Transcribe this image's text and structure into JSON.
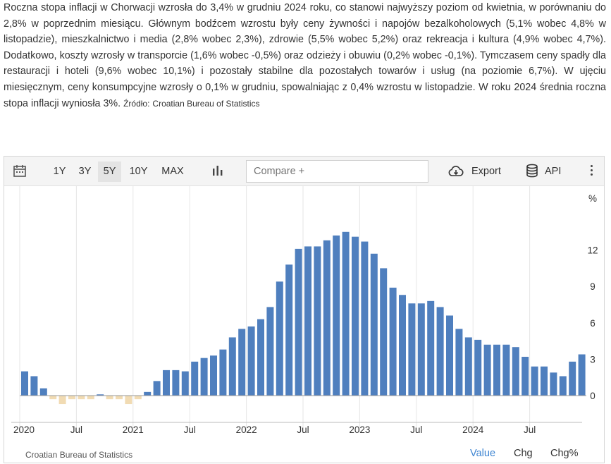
{
  "description": {
    "text": "Roczna stopa inflacji w Chorwacji wzrosła do 3,4% w grudniu 2024 roku, co stanowi najwyższy poziom od kwietnia, w porównaniu do 2,8% w poprzednim miesiącu. Głównym bodźcem wzrostu były ceny żywności i napojów bezalkoholowych (5,1% wobec 4,8% w listopadzie), mieszkalnictwo i media (2,8% wobec 2,3%), zdrowie (5,5% wobec 5,2%) oraz rekreacja i kultura (4,9% wobec 4,7%). Dodatkowo, koszty wzrosły w transporcie (1,6% wobec -0,5%) oraz odzieży i obuwiu (0,2% wobec -0,1%). Tymczasem ceny spadły dla restauracji i hoteli (9,6% wobec 10,1%) i pozostały stabilne dla pozostałych towarów i usług (na poziomie 6,7%). W ujęciu miesięcznym, ceny konsumpcyjne wzrosły o 0,1% w grudniu, spowalniając z 0,4% wzrostu w listopadzie. W roku 2024 średnia roczna stopa inflacji wyniosła 3%.",
    "source_label": "Źródło:",
    "source_name": "Croatian Bureau of Statistics"
  },
  "toolbar": {
    "ranges": [
      "1Y",
      "3Y",
      "5Y",
      "10Y",
      "MAX"
    ],
    "active_range": "5Y",
    "compare_placeholder": "Compare +",
    "export_label": "Export",
    "api_label": "API"
  },
  "footer": {
    "source": "Croatian Bureau of Statistics",
    "tabs": [
      "Value",
      "Chg",
      "Chg%"
    ],
    "active_tab": "Value"
  },
  "colors": {
    "positive": "#4f7fbe",
    "negative": "#f1dbb3",
    "active_tab": "#3d84d1"
  },
  "chart_data": {
    "type": "bar",
    "unit_label": "%",
    "x_tick_labels": [
      "2020",
      "Jul",
      "2021",
      "Jul",
      "2022",
      "Jul",
      "2023",
      "Jul",
      "2024",
      "Jul"
    ],
    "y_ticks": [
      0,
      3,
      6,
      9,
      12
    ],
    "ylim": [
      -1.0,
      15.0
    ],
    "grid": "vertical",
    "categories": [
      "2020-01",
      "2020-02",
      "2020-03",
      "2020-04",
      "2020-05",
      "2020-06",
      "2020-07",
      "2020-08",
      "2020-09",
      "2020-10",
      "2020-11",
      "2020-12",
      "2021-01",
      "2021-02",
      "2021-03",
      "2021-04",
      "2021-05",
      "2021-06",
      "2021-07",
      "2021-08",
      "2021-09",
      "2021-10",
      "2021-11",
      "2021-12",
      "2022-01",
      "2022-02",
      "2022-03",
      "2022-04",
      "2022-05",
      "2022-06",
      "2022-07",
      "2022-08",
      "2022-09",
      "2022-10",
      "2022-11",
      "2022-12",
      "2023-01",
      "2023-02",
      "2023-03",
      "2023-04",
      "2023-05",
      "2023-06",
      "2023-07",
      "2023-08",
      "2023-09",
      "2023-10",
      "2023-11",
      "2023-12",
      "2024-01",
      "2024-02",
      "2024-03",
      "2024-04",
      "2024-05",
      "2024-06",
      "2024-07",
      "2024-08",
      "2024-09",
      "2024-10",
      "2024-11",
      "2024-12"
    ],
    "values": [
      2.0,
      1.6,
      0.6,
      -0.3,
      -0.7,
      -0.3,
      -0.3,
      -0.3,
      0.1,
      -0.3,
      -0.3,
      -0.7,
      -0.3,
      0.3,
      1.2,
      2.1,
      2.1,
      2.0,
      2.8,
      3.1,
      3.3,
      3.8,
      4.8,
      5.5,
      5.7,
      6.3,
      7.3,
      9.4,
      10.8,
      12.1,
      12.3,
      12.3,
      12.8,
      13.2,
      13.5,
      13.1,
      12.7,
      11.7,
      10.5,
      8.9,
      8.3,
      7.6,
      7.6,
      7.8,
      7.3,
      6.6,
      5.5,
      4.8,
      4.6,
      4.2,
      4.2,
      4.2,
      4.0,
      3.2,
      2.4,
      2.4,
      1.9,
      1.6,
      2.8,
      3.4
    ]
  }
}
